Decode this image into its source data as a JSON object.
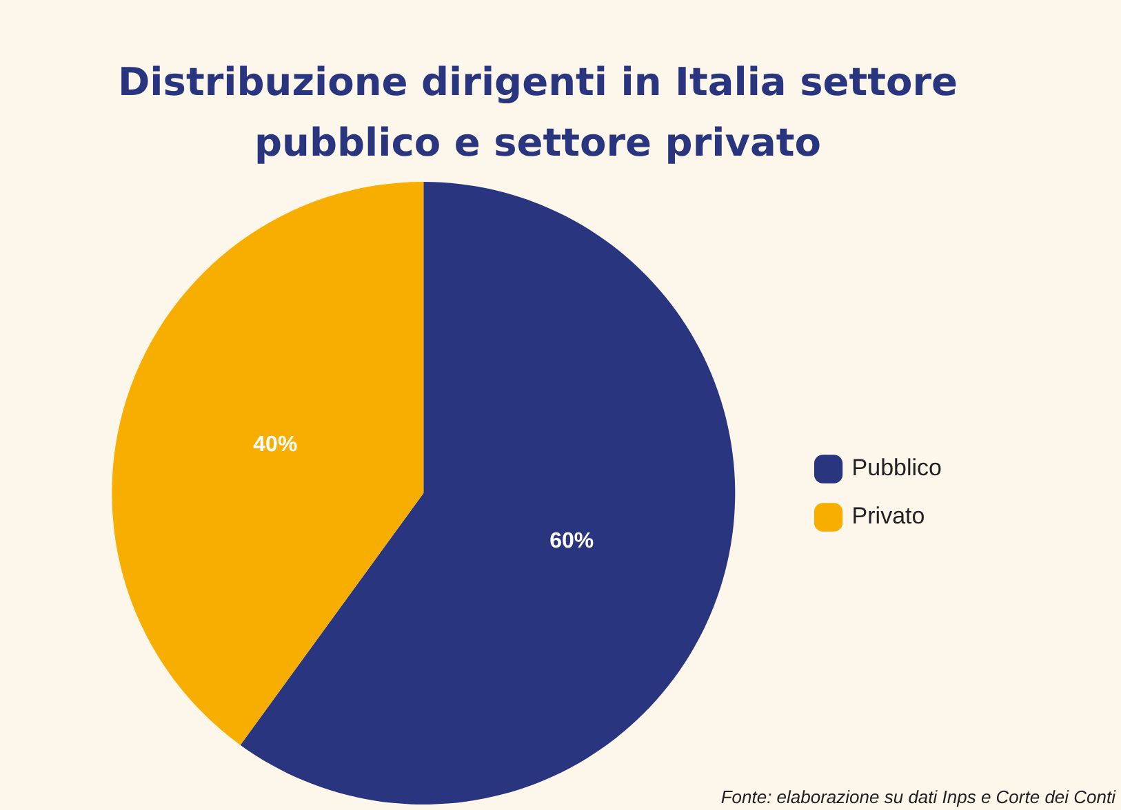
{
  "chart_data": {
    "type": "pie",
    "title": "Distribuzione dirigenti in Italia settore pubblico e settore privato",
    "categories": [
      "Pubblico",
      "Privato"
    ],
    "values": [
      60,
      40
    ],
    "colors": [
      "#29367f",
      "#f8ae00"
    ],
    "value_labels": [
      "60%",
      "40%"
    ],
    "legend": "right",
    "annotations": [
      "Fonte: elaborazione su dati Inps e Corte dei Conti"
    ]
  }
}
